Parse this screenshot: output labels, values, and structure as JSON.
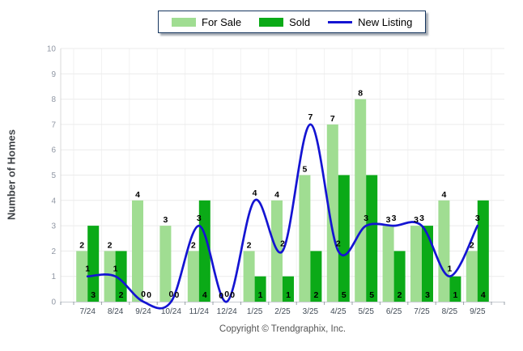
{
  "legend": {
    "items": [
      {
        "label": "For Sale",
        "type": "box"
      },
      {
        "label": "Sold",
        "type": "box"
      },
      {
        "label": "New Listing",
        "type": "line"
      }
    ]
  },
  "y_axis_title": "Number of Homes",
  "footer_text": "Copyright © Trendgraphix, Inc.",
  "chart_data": {
    "type": "bar",
    "subtype": "grouped-bars-with-line-overlay",
    "categories": [
      "7/24",
      "8/24",
      "9/24",
      "10/24",
      "11/24",
      "12/24",
      "1/25",
      "2/25",
      "3/25",
      "4/25",
      "5/25",
      "6/25",
      "7/25",
      "8/25",
      "9/25"
    ],
    "series": [
      {
        "name": "For Sale",
        "type": "bar",
        "color": "#a0dd92",
        "values": [
          2,
          2,
          4,
          3,
          2,
          0,
          2,
          4,
          5,
          7,
          8,
          3,
          3,
          4,
          2
        ]
      },
      {
        "name": "Sold",
        "type": "bar",
        "color": "#0baa17",
        "values": [
          3,
          2,
          0,
          0,
          4,
          0,
          1,
          1,
          2,
          5,
          5,
          2,
          3,
          1,
          4
        ]
      },
      {
        "name": "New Listing",
        "type": "line",
        "color": "#1414d2",
        "values": [
          1,
          1,
          0,
          0,
          3,
          0,
          4,
          2,
          7,
          2,
          3,
          3,
          3,
          1,
          3
        ]
      }
    ],
    "title": "",
    "xlabel": "",
    "ylabel": "Number of Homes",
    "ylim": [
      0,
      10
    ],
    "yticks": [
      0,
      1,
      2,
      3,
      4,
      5,
      6,
      7,
      8,
      9,
      10
    ],
    "grid": true,
    "data_labels": true,
    "legend_position": "top"
  }
}
